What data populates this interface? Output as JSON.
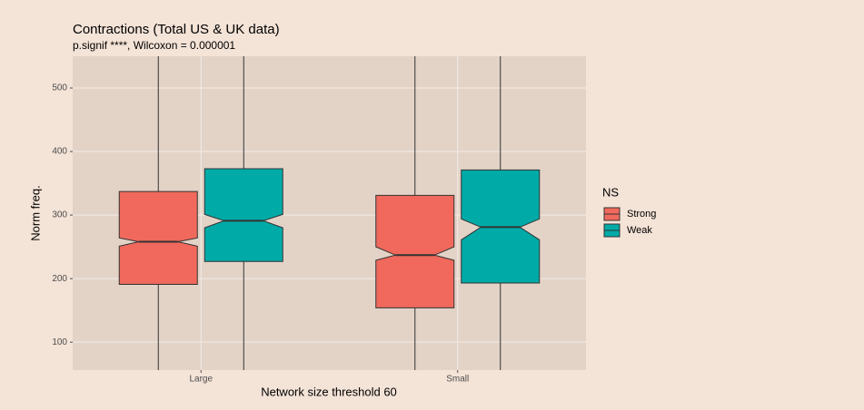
{
  "chart_data": {
    "type": "boxplot",
    "title": "Contractions (Total US & UK data)",
    "subtitle": "p.signif ****, Wilcoxon = 0.000001",
    "x_label": "Network size threshold 60",
    "y_label": "Norm freq.",
    "legend_title": "NS",
    "categories": [
      "Large",
      "Small"
    ],
    "series": [
      {
        "name": "Strong",
        "color": "#f0695c",
        "whisker_low": [
          56,
          56
        ],
        "q1": [
          191,
          154
        ],
        "notch_low": [
          251,
          229
        ],
        "median": [
          258,
          237
        ],
        "notch_high": [
          264,
          250
        ],
        "q3": [
          337,
          331
        ],
        "whisker_high": [
          550,
          550
        ]
      },
      {
        "name": "Weak",
        "color": "#00aaa7",
        "whisker_low": [
          56,
          56
        ],
        "q1": [
          227,
          193
        ],
        "notch_low": [
          280,
          261
        ],
        "median": [
          291,
          281
        ],
        "notch_high": [
          301,
          294
        ],
        "q3": [
          373,
          371
        ],
        "whisker_high": [
          550,
          550
        ]
      }
    ],
    "ylim": [
      56,
      550
    ],
    "yticks": [
      100,
      200,
      300,
      400,
      500
    ],
    "grid": true
  }
}
